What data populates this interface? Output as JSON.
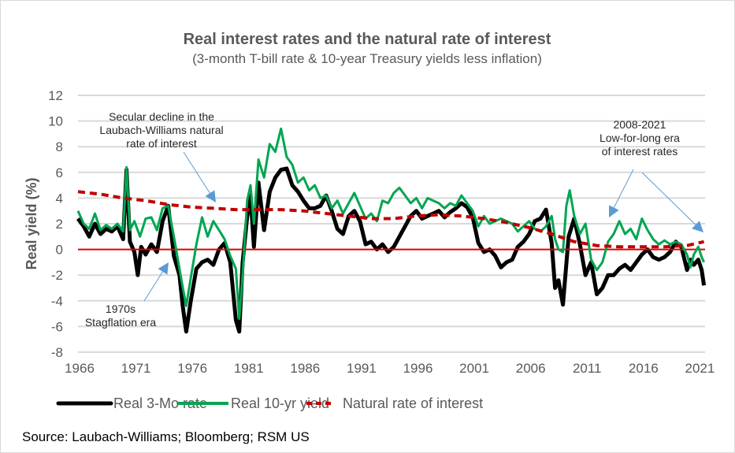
{
  "chart_data": {
    "type": "line",
    "title": "Real interest rates and the natural rate of interest",
    "subtitle": "(3-month T-bill rate & 10-year Treasury yields less inflation)",
    "xlabel": "",
    "ylabel": "Real yield (%)",
    "xlim": [
      1966,
      2021.6
    ],
    "ylim": [
      -8,
      12
    ],
    "x_ticks": [
      1966,
      1971,
      1976,
      1981,
      1986,
      1991,
      1996,
      2001,
      2006,
      2011,
      2016,
      2021
    ],
    "y_ticks": [
      12,
      10,
      8,
      6,
      4,
      2,
      0,
      -2,
      -4,
      -6,
      -8
    ],
    "grid": true,
    "zero_line_color": "#e00000",
    "legend_position": "bottom",
    "series": [
      {
        "name": "Real 3-Mo rate",
        "color": "#000000",
        "style": "solid",
        "x": [
          1966,
          1966.5,
          1967,
          1967.5,
          1968,
          1968.5,
          1969,
          1969.5,
          1970,
          1970.3,
          1970.6,
          1971,
          1971.3,
          1971.6,
          1972,
          1972.5,
          1973,
          1973.5,
          1974,
          1974.5,
          1975,
          1975.3,
          1975.6,
          1976,
          1976.5,
          1977,
          1977.5,
          1978,
          1978.5,
          1979,
          1979.5,
          1980,
          1980.3,
          1980.6,
          1981,
          1981.3,
          1981.6,
          1982,
          1982.5,
          1983,
          1983.5,
          1984,
          1984.5,
          1985,
          1985.5,
          1986,
          1986.5,
          1987,
          1987.5,
          1988,
          1988.5,
          1989,
          1989.5,
          1990,
          1990.5,
          1991,
          1991.5,
          1992,
          1992.5,
          1993,
          1993.5,
          1994,
          1994.5,
          1995,
          1995.5,
          1996,
          1996.5,
          1997,
          1997.5,
          1998,
          1998.5,
          1999,
          1999.5,
          2000,
          2000.5,
          2001,
          2001.5,
          2002,
          2002.5,
          2003,
          2003.5,
          2004,
          2004.5,
          2005,
          2005.5,
          2006,
          2006.5,
          2007,
          2007.5,
          2008,
          2008.3,
          2008.6,
          2009,
          2009.5,
          2010,
          2010.5,
          2011,
          2011.5,
          2012,
          2012.5,
          2013,
          2013.5,
          2014,
          2014.5,
          2015,
          2015.5,
          2016,
          2016.5,
          2017,
          2017.5,
          2018,
          2018.5,
          2019,
          2019.5,
          2020,
          2020.3,
          2020.6,
          2021,
          2021.3,
          2021.5
        ],
        "values": [
          2.4,
          1.8,
          1.0,
          2.0,
          1.2,
          1.6,
          1.4,
          1.8,
          0.8,
          6.2,
          0.6,
          -0.2,
          -2.0,
          0.2,
          -0.4,
          0.4,
          -0.2,
          2.2,
          3.4,
          -0.5,
          -2.0,
          -4.5,
          -6.4,
          -4.0,
          -1.5,
          -1.0,
          -0.8,
          -1.2,
          0.0,
          0.5,
          -1.0,
          -5.5,
          -6.4,
          -1.0,
          2.5,
          4.2,
          0.2,
          5.2,
          1.5,
          4.5,
          5.6,
          6.2,
          6.3,
          5.0,
          4.5,
          3.8,
          3.2,
          3.2,
          3.4,
          4.2,
          3.0,
          1.6,
          1.2,
          2.6,
          3.0,
          2.2,
          0.4,
          0.6,
          0.0,
          0.4,
          -0.2,
          0.2,
          1.0,
          1.8,
          2.6,
          3.0,
          2.4,
          2.6,
          2.8,
          3.0,
          2.5,
          2.9,
          3.2,
          3.6,
          3.3,
          2.5,
          0.5,
          -0.2,
          0.0,
          -0.5,
          -1.4,
          -1.0,
          -0.8,
          0.2,
          0.6,
          1.2,
          2.2,
          2.4,
          3.1,
          0.5,
          -3.0,
          -2.4,
          -4.3,
          1.0,
          2.4,
          0.4,
          -2.0,
          -1.0,
          -3.5,
          -3.0,
          -2.0,
          -2.0,
          -1.5,
          -1.2,
          -1.6,
          -1.0,
          -0.4,
          0.0,
          -0.6,
          -0.8,
          -0.6,
          -0.2,
          0.6,
          0.2,
          -1.6,
          -0.8,
          -1.2,
          -0.8,
          -1.6,
          -2.8
        ]
      },
      {
        "name": "Real 10-yr yield",
        "color": "#00a651",
        "style": "solid",
        "x": [
          1966,
          1966.5,
          1967,
          1967.5,
          1968,
          1968.5,
          1969,
          1969.5,
          1970,
          1970.3,
          1970.6,
          1971,
          1971.5,
          1972,
          1972.5,
          1973,
          1973.5,
          1974,
          1974.5,
          1975,
          1975.3,
          1975.6,
          1976,
          1976.5,
          1977,
          1977.5,
          1978,
          1978.5,
          1979,
          1979.5,
          1980,
          1980.3,
          1980.6,
          1981,
          1981.3,
          1981.6,
          1982,
          1982.5,
          1983,
          1983.5,
          1984,
          1984.5,
          1985,
          1985.5,
          1986,
          1986.5,
          1987,
          1987.5,
          1988,
          1988.5,
          1989,
          1989.5,
          1990,
          1990.5,
          1991,
          1991.5,
          1992,
          1992.5,
          1993,
          1993.5,
          1994,
          1994.5,
          1995,
          1995.5,
          1996,
          1996.5,
          1997,
          1997.5,
          1998,
          1998.5,
          1999,
          1999.5,
          2000,
          2000.5,
          2001,
          2001.5,
          2002,
          2002.5,
          2003,
          2003.5,
          2004,
          2004.5,
          2005,
          2005.5,
          2006,
          2006.5,
          2007,
          2007.5,
          2008,
          2008.3,
          2008.6,
          2009,
          2009.3,
          2009.6,
          2010,
          2010.5,
          2011,
          2011.5,
          2012,
          2012.5,
          2013,
          2013.5,
          2014,
          2014.5,
          2015,
          2015.5,
          2016,
          2016.5,
          2017,
          2017.5,
          2018,
          2018.5,
          2019,
          2019.5,
          2020,
          2020.3,
          2020.6,
          2021,
          2021.3,
          2021.5
        ],
        "values": [
          3.0,
          2.0,
          1.6,
          2.8,
          1.5,
          1.9,
          1.6,
          2.0,
          1.4,
          6.4,
          1.5,
          2.2,
          1.0,
          2.4,
          2.5,
          1.5,
          3.2,
          3.4,
          1.0,
          -1.5,
          -3.0,
          -4.4,
          -2.2,
          0.4,
          2.5,
          1.0,
          2.2,
          1.5,
          0.8,
          -0.5,
          -1.5,
          -5.4,
          -2.0,
          3.8,
          5.0,
          2.0,
          7.0,
          5.6,
          8.2,
          7.6,
          9.4,
          7.2,
          6.6,
          5.2,
          5.6,
          4.6,
          5.0,
          4.0,
          4.2,
          3.2,
          3.8,
          2.8,
          3.6,
          4.4,
          3.4,
          2.4,
          2.8,
          2.2,
          3.8,
          3.6,
          4.4,
          4.8,
          4.2,
          3.6,
          4.0,
          3.2,
          4.0,
          3.8,
          3.6,
          3.2,
          3.6,
          3.4,
          4.2,
          3.6,
          3.0,
          1.8,
          2.6,
          2.0,
          2.2,
          2.4,
          2.2,
          2.0,
          1.4,
          1.8,
          2.2,
          1.6,
          1.4,
          1.8,
          2.6,
          0.8,
          0.0,
          -0.2,
          3.4,
          4.6,
          2.6,
          1.2,
          2.0,
          -0.8,
          -1.6,
          -1.0,
          0.6,
          1.2,
          2.2,
          1.2,
          1.6,
          0.8,
          2.4,
          1.5,
          0.8,
          0.4,
          0.7,
          0.4,
          0.6,
          0.4,
          -0.4,
          -1.4,
          -0.4,
          0.2,
          -0.6,
          -1.0
        ]
      },
      {
        "name": "Natural rate of interest",
        "color": "#c00000",
        "style": "dashed",
        "x": [
          1966,
          1968,
          1970,
          1972,
          1974,
          1976,
          1978,
          1980,
          1982,
          1984,
          1986,
          1988,
          1990,
          1992,
          1994,
          1996,
          1998,
          2000,
          2002,
          2004,
          2006,
          2008,
          2010,
          2012,
          2014,
          2016,
          2018,
          2020,
          2021.5
        ],
        "values": [
          4.5,
          4.3,
          4.0,
          3.8,
          3.5,
          3.3,
          3.2,
          3.1,
          3.1,
          3.1,
          3.0,
          2.8,
          2.6,
          2.4,
          2.4,
          2.6,
          2.7,
          2.6,
          2.4,
          2.1,
          1.7,
          1.2,
          0.6,
          0.3,
          0.2,
          0.2,
          0.2,
          0.3,
          0.6
        ]
      }
    ],
    "annotations": [
      {
        "name": "secular-decline",
        "lines": [
          "Secular decline in the",
          "Laubach-Williams natural",
          "rate of interest"
        ]
      },
      {
        "name": "stagflation",
        "lines": [
          "1970s",
          "Stagflation era"
        ]
      },
      {
        "name": "low-for-long",
        "lines": [
          "2008-2021",
          "Low-for-long era",
          "of interest rates"
        ]
      }
    ],
    "source": "Source: Laubach-Williams; Bloomberg; RSM US",
    "arrow_color": "#5b9bd5",
    "grid_color": "#d9d9d9"
  }
}
